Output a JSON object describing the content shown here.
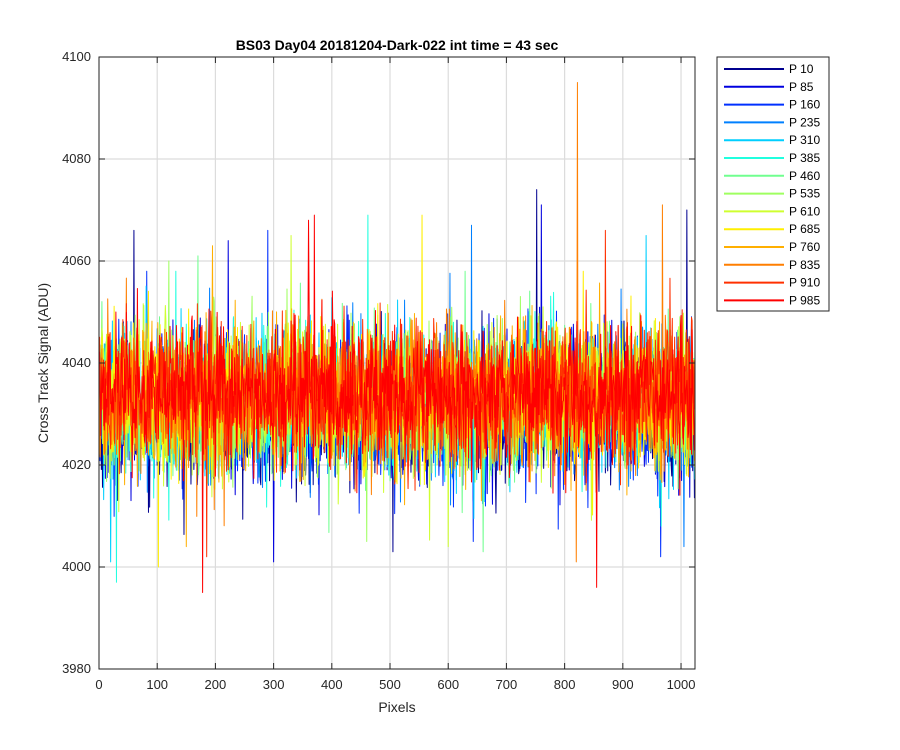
{
  "chart_data": {
    "type": "line",
    "title": "BS03 Day04 20181204-Dark-022 int time = 43 sec",
    "xlabel": "Pixels",
    "ylabel": "Cross Track Signal (ADU)",
    "xlim": [
      0,
      1024
    ],
    "ylim": [
      3980,
      4100
    ],
    "xticks": [
      0,
      100,
      200,
      300,
      400,
      500,
      600,
      700,
      800,
      900,
      1000
    ],
    "yticks": [
      3980,
      4000,
      4020,
      4040,
      4060,
      4080,
      4100
    ],
    "grid": true,
    "legend_position": "outside-right",
    "series": [
      {
        "name": "P 10",
        "color": "#00008F",
        "mean": 4030,
        "spread": 9,
        "spikes": [
          [
            60,
            4066
          ],
          [
            752,
            4074
          ],
          [
            1010,
            4070
          ],
          [
            505,
            4003
          ]
        ]
      },
      {
        "name": "P 85",
        "color": "#0000DF",
        "mean": 4031,
        "spread": 9,
        "spikes": [
          [
            222,
            4064
          ],
          [
            760,
            4071
          ],
          [
            300,
            4001
          ]
        ]
      },
      {
        "name": "P 160",
        "color": "#0030FF",
        "mean": 4031,
        "spread": 9,
        "spikes": [
          [
            290,
            4066
          ],
          [
            965,
            4002
          ]
        ]
      },
      {
        "name": "P 235",
        "color": "#0080FF",
        "mean": 4032,
        "spread": 9,
        "spikes": [
          [
            640,
            4067
          ],
          [
            1005,
            4004
          ]
        ]
      },
      {
        "name": "P 310",
        "color": "#00CFFF",
        "mean": 4032,
        "spread": 9,
        "spikes": [
          [
            20,
            4001
          ],
          [
            940,
            4065
          ]
        ]
      },
      {
        "name": "P 385",
        "color": "#20FFDF",
        "mean": 4033,
        "spread": 9,
        "spikes": [
          [
            462,
            4069
          ],
          [
            30,
            3997
          ]
        ]
      },
      {
        "name": "P 460",
        "color": "#70FF8F",
        "mean": 4033,
        "spread": 9,
        "spikes": [
          [
            660,
            4003
          ],
          [
            170,
            4061
          ]
        ]
      },
      {
        "name": "P 535",
        "color": "#9FFF60",
        "mean": 4033,
        "spread": 9,
        "spikes": [
          [
            460,
            4005
          ],
          [
            120,
            4060
          ]
        ]
      },
      {
        "name": "P 610",
        "color": "#CFFF30",
        "mean": 4033,
        "spread": 9,
        "spikes": [
          [
            330,
            4065
          ],
          [
            600,
            4004
          ]
        ]
      },
      {
        "name": "P 685",
        "color": "#FFEF00",
        "mean": 4033,
        "spread": 9,
        "spikes": [
          [
            555,
            4069
          ],
          [
            102,
            4000
          ]
        ]
      },
      {
        "name": "P 760",
        "color": "#FFAF00",
        "mean": 4033,
        "spread": 9,
        "spikes": [
          [
            195,
            4063
          ],
          [
            150,
            4004
          ]
        ]
      },
      {
        "name": "P 835",
        "color": "#FF7F00",
        "mean": 4034,
        "spread": 9,
        "spikes": [
          [
            822,
            4095
          ],
          [
            820,
            4001
          ],
          [
            968,
            4071
          ]
        ]
      },
      {
        "name": "P 910",
        "color": "#FF3000",
        "mean": 4034,
        "spread": 9,
        "spikes": [
          [
            185,
            4002
          ],
          [
            870,
            4066
          ]
        ]
      },
      {
        "name": "P 985",
        "color": "#FF0000",
        "mean": 4034,
        "spread": 9,
        "spikes": [
          [
            178,
            3995
          ],
          [
            855,
            3996
          ],
          [
            370,
            4069
          ],
          [
            360,
            4068
          ]
        ]
      }
    ]
  }
}
